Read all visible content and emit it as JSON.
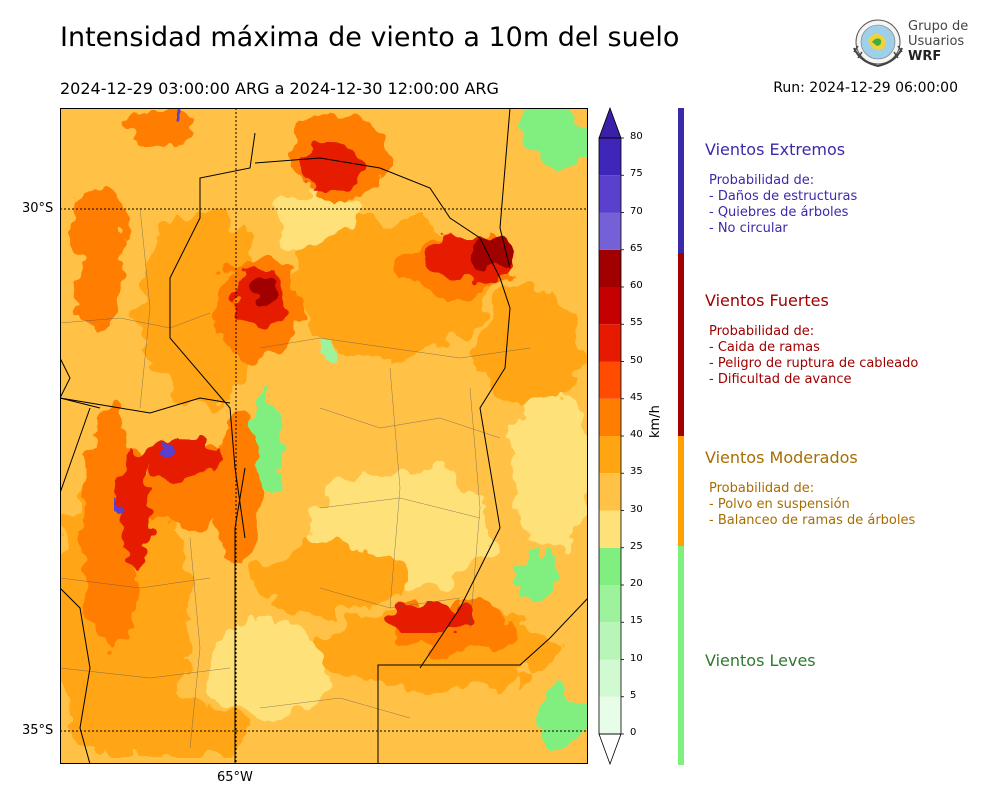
{
  "header": {
    "title": "Intensidad máxima de viento a 10m del suelo",
    "date_range": "2024-12-29 03:00:00 ARG  a  2024-12-30 12:00:00 ARG",
    "run": "Run: 2024-12-29 06:00:00"
  },
  "logo": {
    "line1": "Grupo de",
    "line2": "Usuarios",
    "line3": "WRF"
  },
  "axes": {
    "lat_labels": [
      "30°S",
      "35°S"
    ],
    "lon_labels": [
      "65°W"
    ]
  },
  "colorbar": {
    "unit": "km/h",
    "ticks": [
      "80",
      "75",
      "70",
      "65",
      "60",
      "55",
      "50",
      "45",
      "40",
      "35",
      "30",
      "25",
      "20",
      "15",
      "10",
      "5",
      "0"
    ],
    "levels": [
      {
        "min": 0,
        "color": "#e8fde8"
      },
      {
        "min": 5,
        "color": "#d2fad2"
      },
      {
        "min": 10,
        "color": "#b8f6b8"
      },
      {
        "min": 15,
        "color": "#9cf39c"
      },
      {
        "min": 20,
        "color": "#80ef80"
      },
      {
        "min": 25,
        "color": "#ffe17a"
      },
      {
        "min": 30,
        "color": "#ffc246"
      },
      {
        "min": 35,
        "color": "#ffa512"
      },
      {
        "min": 40,
        "color": "#ff7d00"
      },
      {
        "min": 45,
        "color": "#ff4c00"
      },
      {
        "min": 50,
        "color": "#e61a00"
      },
      {
        "min": 55,
        "color": "#c40000"
      },
      {
        "min": 60,
        "color": "#a00000"
      },
      {
        "min": 65,
        "color": "#7560d8"
      },
      {
        "min": 70,
        "color": "#5a40cc"
      },
      {
        "min": 75,
        "color": "#4026b8"
      }
    ],
    "extend_high_color": "#3a1fa8",
    "extend_low_color": "#ffffff"
  },
  "categories": [
    {
      "name": "Vientos Extremos",
      "color": "#3a2aaa",
      "bar_color": "#3a2aaa",
      "lines": [
        "Probabilidad de:",
        "- Daños de estructuras",
        "- Quiebres de árboles",
        "- No circular"
      ]
    },
    {
      "name": "Vientos Fuertes",
      "color": "#a00000",
      "bar_color": "#a00000",
      "lines": [
        "Probabilidad de:",
        "- Caida de ramas",
        "- Peligro de ruptura de cableado",
        "- Dificultad de avance"
      ]
    },
    {
      "name": "Vientos Moderados",
      "color": "#a86d00",
      "bar_color": "#ff9f00",
      "lines": [
        "Probabilidad de:",
        "- Polvo en suspensión",
        "- Balanceo de ramas de árboles"
      ]
    },
    {
      "name": "Vientos Leves",
      "color": "#2e7a2e",
      "bar_color": "#7ef07e",
      "lines": []
    }
  ]
}
